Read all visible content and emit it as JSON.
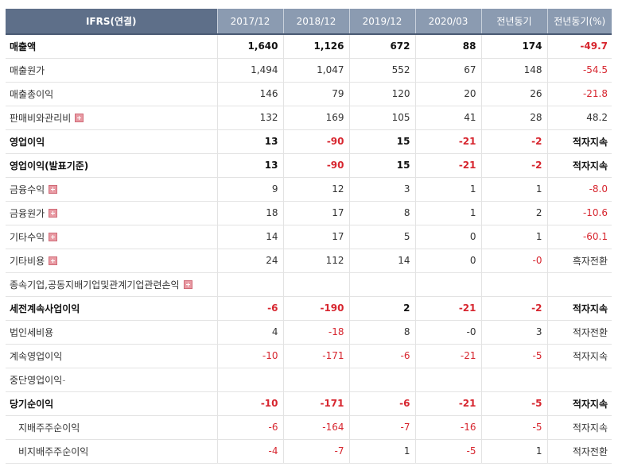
{
  "header": [
    "IFRS(연결)",
    "2017/12",
    "2018/12",
    "2019/12",
    "2020/03",
    "전년동기",
    "전년동기(%)"
  ],
  "rows": [
    {
      "label": "매출액",
      "bold": true,
      "expand": false,
      "indent": false,
      "cells": [
        "1,640",
        "1,126",
        "672",
        "88",
        "174",
        "-49.7"
      ]
    },
    {
      "label": "매출원가",
      "bold": false,
      "expand": false,
      "indent": false,
      "cells": [
        "1,494",
        "1,047",
        "552",
        "67",
        "148",
        "-54.5"
      ]
    },
    {
      "label": "매출총이익",
      "bold": false,
      "expand": false,
      "indent": false,
      "cells": [
        "146",
        "79",
        "120",
        "20",
        "26",
        "-21.8"
      ]
    },
    {
      "label": "판매비와관리비",
      "bold": false,
      "expand": true,
      "indent": false,
      "cells": [
        "132",
        "169",
        "105",
        "41",
        "28",
        "48.2"
      ]
    },
    {
      "label": "영업이익",
      "bold": true,
      "expand": false,
      "indent": false,
      "cells": [
        "13",
        "-90",
        "15",
        "-21",
        "-2",
        "적자지속"
      ]
    },
    {
      "label": "영업이익(발표기준)",
      "bold": true,
      "expand": false,
      "indent": false,
      "cells": [
        "13",
        "-90",
        "15",
        "-21",
        "-2",
        "적자지속"
      ]
    },
    {
      "label": "금융수익",
      "bold": false,
      "expand": true,
      "indent": false,
      "cells": [
        "9",
        "12",
        "3",
        "1",
        "1",
        "-8.0"
      ]
    },
    {
      "label": "금융원가",
      "bold": false,
      "expand": true,
      "indent": false,
      "cells": [
        "18",
        "17",
        "8",
        "1",
        "2",
        "-10.6"
      ]
    },
    {
      "label": "기타수익",
      "bold": false,
      "expand": true,
      "indent": false,
      "cells": [
        "14",
        "17",
        "5",
        "0",
        "1",
        "-60.1"
      ]
    },
    {
      "label": "기타비용",
      "bold": false,
      "expand": true,
      "indent": false,
      "cells": [
        "24",
        "112",
        "14",
        "0",
        "-0",
        "흑자전환"
      ]
    },
    {
      "label": "종속기업,공동지배기업및관계기업관련손익",
      "bold": false,
      "expand": true,
      "indent": false,
      "cells": [
        "",
        "",
        "",
        "",
        "",
        ""
      ]
    },
    {
      "label": "세전계속사업이익",
      "bold": true,
      "expand": false,
      "indent": false,
      "cells": [
        "-6",
        "-190",
        "2",
        "-21",
        "-2",
        "적자지속"
      ]
    },
    {
      "label": "법인세비용",
      "bold": false,
      "expand": false,
      "indent": false,
      "cells": [
        "4",
        "-18",
        "8",
        "-0",
        "3",
        "적자전환"
      ]
    },
    {
      "label": "계속영업이익",
      "bold": false,
      "expand": false,
      "indent": false,
      "cells": [
        "-10",
        "-171",
        "-6",
        "-21",
        "-5",
        "적자지속"
      ]
    },
    {
      "label": "중단영업이익",
      "bold": false,
      "expand": false,
      "indent": false,
      "cells": [
        "",
        "",
        "",
        "",
        "",
        ""
      ],
      "suffix": "-"
    },
    {
      "label": "당기순이익",
      "bold": true,
      "expand": false,
      "indent": false,
      "cells": [
        "-10",
        "-171",
        "-6",
        "-21",
        "-5",
        "적자지속"
      ]
    },
    {
      "label": "지배주주순이익",
      "bold": false,
      "expand": false,
      "indent": true,
      "cells": [
        "-6",
        "-164",
        "-7",
        "-16",
        "-5",
        "적자지속"
      ]
    },
    {
      "label": "비지배주주순이익",
      "bold": false,
      "expand": false,
      "indent": true,
      "cells": [
        "-4",
        "-7",
        "1",
        "-5",
        "1",
        "적자전환"
      ]
    }
  ]
}
